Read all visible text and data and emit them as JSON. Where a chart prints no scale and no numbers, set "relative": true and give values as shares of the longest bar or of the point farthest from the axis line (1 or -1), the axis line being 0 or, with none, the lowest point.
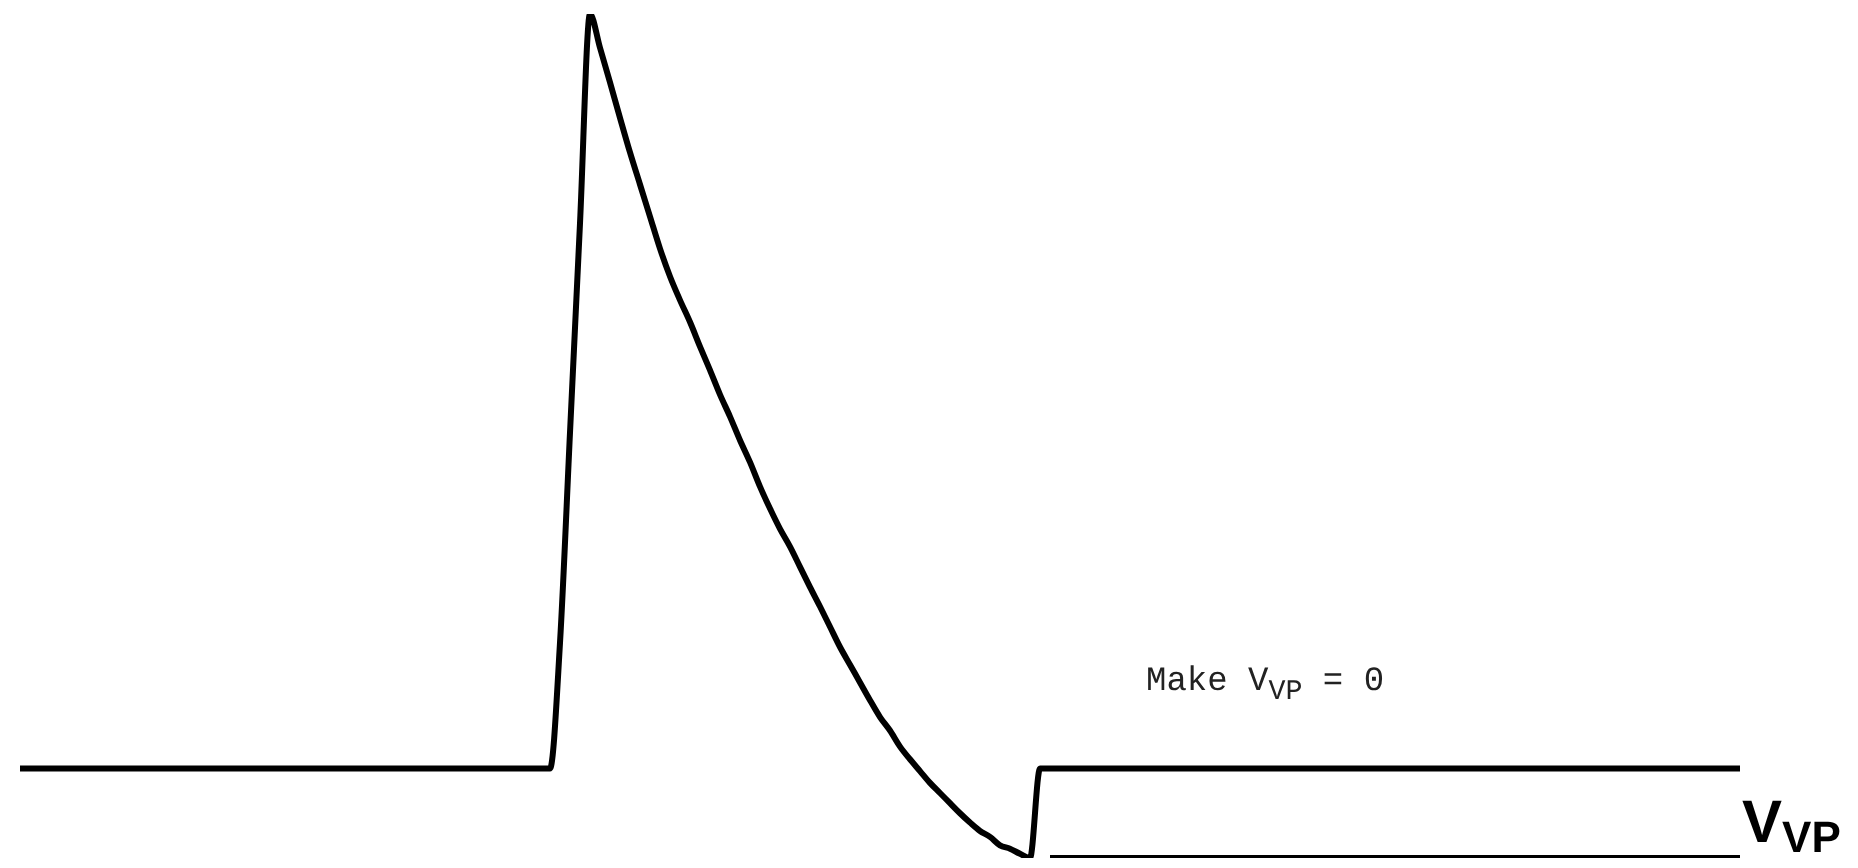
{
  "chart_data": {
    "type": "line",
    "relative": true,
    "categories": [
      null,
      null,
      null,
      null,
      null,
      null,
      null,
      null,
      null,
      null,
      null,
      null,
      null,
      null,
      null,
      null,
      null,
      null,
      null,
      null,
      null,
      null,
      null,
      null,
      null,
      null,
      null,
      null,
      null,
      null,
      null,
      null,
      null,
      null,
      null,
      null,
      null,
      null,
      null,
      null,
      null,
      null,
      null,
      null,
      null,
      null,
      null,
      null,
      null,
      null,
      null,
      null,
      null,
      null,
      null,
      null,
      null,
      null,
      null,
      null,
      null,
      null,
      null,
      null,
      null,
      null,
      null,
      null,
      null,
      null,
      null,
      null,
      null,
      null,
      null,
      null,
      null,
      null,
      null,
      null,
      null,
      null,
      null,
      null,
      null,
      null,
      null,
      null,
      null,
      null,
      null,
      null,
      null,
      null,
      null,
      null,
      null,
      null,
      null,
      null,
      null,
      null,
      null,
      null,
      null,
      null,
      null,
      null,
      null,
      null,
      null,
      null,
      null,
      null,
      null,
      null,
      null,
      null,
      null,
      null,
      null,
      null,
      null,
      null,
      null,
      null,
      null,
      null,
      null,
      null,
      null,
      null,
      null,
      null,
      null,
      null,
      null,
      null,
      null,
      null,
      null,
      null,
      null,
      null,
      null,
      null,
      null,
      null,
      null,
      null,
      null,
      null,
      null,
      null,
      null,
      null,
      null,
      null,
      null,
      null,
      null,
      null,
      null,
      null,
      null,
      null,
      null,
      null,
      null,
      null,
      null,
      null,
      null
    ],
    "series": [
      {
        "color": "#000000",
        "values": [
          0.106,
          0.106,
          0.106,
          0.106,
          0.106,
          0.106,
          0.106,
          0.106,
          0.106,
          0.106,
          0.106,
          0.106,
          0.106,
          0.106,
          0.106,
          0.106,
          0.106,
          0.106,
          0.106,
          0.106,
          0.106,
          0.106,
          0.106,
          0.106,
          0.106,
          0.106,
          0.106,
          0.106,
          0.106,
          0.106,
          0.106,
          0.106,
          0.106,
          0.106,
          0.106,
          0.106,
          0.106,
          0.106,
          0.106,
          0.106,
          0.106,
          0.106,
          0.106,
          0.106,
          0.106,
          0.106,
          0.106,
          0.106,
          0.106,
          0.106,
          0.106,
          0.106,
          0.106,
          0.106,
          0.255,
          0.504,
          0.752,
          1,
          0.96,
          0.919,
          0.877,
          0.836,
          0.798,
          0.76,
          0.722,
          0.689,
          0.661,
          0.635,
          0.606,
          0.578,
          0.549,
          0.523,
          0.495,
          0.469,
          0.44,
          0.414,
          0.39,
          0.369,
          0.345,
          0.321,
          0.298,
          0.274,
          0.25,
          0.229,
          0.208,
          0.187,
          0.167,
          0.151,
          0.132,
          0.117,
          0.103,
          0.089,
          0.077,
          0.065,
          0.053,
          0.042,
          0.032,
          0.025,
          0.015,
          0.011,
          0.005,
          0,
          0.106,
          0.106,
          0.106,
          0.106,
          0.106,
          0.106,
          0.106,
          0.106,
          0.106,
          0.106,
          0.106,
          0.106,
          0.106,
          0.106,
          0.106,
          0.106,
          0.106,
          0.106,
          0.106,
          0.106,
          0.106,
          0.106,
          0.106,
          0.106,
          0.106,
          0.106,
          0.106,
          0.106,
          0.106,
          0.106,
          0.106,
          0.106,
          0.106,
          0.106,
          0.106,
          0.106,
          0.106,
          0.106,
          0.106,
          0.106,
          0.106,
          0.106,
          0.106,
          0.106,
          0.106,
          0.106,
          0.106,
          0.106,
          0.106,
          0.106,
          0.106,
          0.106,
          0.106,
          0.106,
          0.106,
          0.106,
          0.106,
          0.106,
          0.106,
          0.106,
          0.106,
          0.106,
          0.106,
          0.106,
          0.106,
          0.106,
          0.106,
          0.106,
          0.106,
          0.106,
          0.106
        ]
      },
      {
        "name": "V$_{VP}$",
        "color": "#000000",
        "values": [
          null,
          null,
          null,
          null,
          null,
          null,
          null,
          null,
          null,
          null,
          null,
          null,
          null,
          null,
          null,
          null,
          null,
          null,
          null,
          null,
          null,
          null,
          null,
          null,
          null,
          null,
          null,
          null,
          null,
          null,
          null,
          null,
          null,
          null,
          null,
          null,
          null,
          null,
          null,
          null,
          null,
          null,
          null,
          null,
          null,
          null,
          null,
          null,
          null,
          null,
          null,
          null,
          null,
          null,
          null,
          null,
          null,
          null,
          null,
          null,
          null,
          null,
          null,
          null,
          null,
          null,
          null,
          null,
          null,
          null,
          null,
          null,
          null,
          null,
          null,
          null,
          null,
          null,
          null,
          null,
          null,
          null,
          null,
          null,
          null,
          null,
          null,
          null,
          null,
          null,
          null,
          null,
          null,
          null,
          null,
          null,
          null,
          null,
          null,
          null,
          null,
          null,
          null,
          0,
          0,
          0,
          0,
          0,
          0,
          0,
          0,
          0,
          0,
          0,
          0,
          0,
          0,
          0,
          0,
          0,
          0,
          0,
          0,
          0,
          0,
          0,
          0,
          0,
          0,
          0,
          0,
          0,
          0,
          0,
          0,
          0,
          0,
          0,
          0,
          0,
          0,
          0,
          0,
          0,
          0,
          0,
          0,
          0,
          0,
          0,
          0,
          0,
          0,
          0,
          0,
          0,
          0,
          0,
          0,
          0,
          0,
          0,
          0,
          0,
          0,
          0,
          0,
          0,
          0,
          0,
          0,
          0,
          0
        ]
      }
    ],
    "annotations": [
      "Make V$_{VP}$ = 0"
    ]
  }
}
